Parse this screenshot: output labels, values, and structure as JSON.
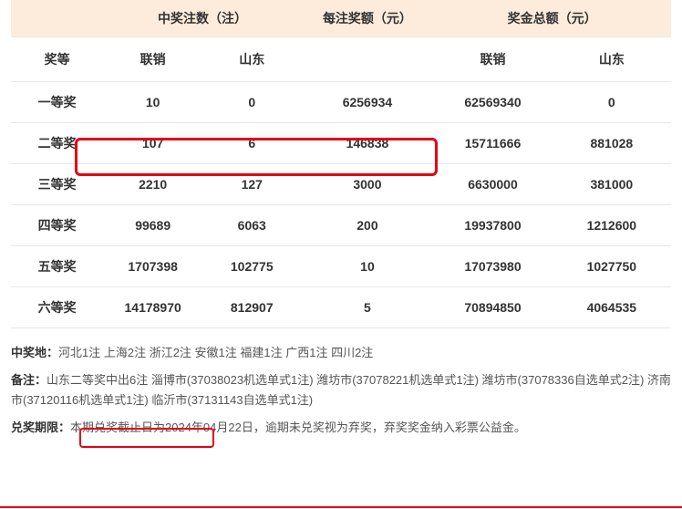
{
  "table": {
    "group_headers": {
      "blank": "",
      "count": "中奖注数（注）",
      "per_bet": "每注奖额（元）",
      "total": "奖金总额（元）"
    },
    "sub_headers": {
      "tier": "奖等",
      "count_lx": "联销",
      "count_sd": "山东",
      "per_bet": "",
      "total_lx": "联销",
      "total_sd": "山东"
    },
    "rows": [
      {
        "tier": "一等奖",
        "count_lx": "10",
        "count_sd": "0",
        "per_bet": "6256934",
        "total_lx": "62569340",
        "total_sd": "0"
      },
      {
        "tier": "二等奖",
        "count_lx": "107",
        "count_sd": "6",
        "per_bet": "146838",
        "total_lx": "15711666",
        "total_sd": "881028"
      },
      {
        "tier": "三等奖",
        "count_lx": "2210",
        "count_sd": "127",
        "per_bet": "3000",
        "total_lx": "6630000",
        "total_sd": "381000"
      },
      {
        "tier": "四等奖",
        "count_lx": "99689",
        "count_sd": "6063",
        "per_bet": "200",
        "total_lx": "19937800",
        "total_sd": "1212600"
      },
      {
        "tier": "五等奖",
        "count_lx": "1707398",
        "count_sd": "102775",
        "per_bet": "10",
        "total_lx": "17073980",
        "total_sd": "1027750"
      },
      {
        "tier": "六等奖",
        "count_lx": "14178970",
        "count_sd": "812907",
        "per_bet": "5",
        "total_lx": "70894850",
        "total_sd": "4064535"
      }
    ]
  },
  "notes": {
    "location_label": "中奖地：",
    "location_text": "河北1注 上海2注 浙江2注 安徽1注 福建1注 广西1注 四川2注",
    "remark_label": "备注：",
    "remark_highlight": "山东二等奖中出6注",
    "remark_rest": "淄博市(37038023机选单式1注) 潍坊市(37078221机选单式1注) 潍坊市(37078336自选单式2注) 济南市(37120116机选单式1注) 临沂市(37131143自选单式1注)",
    "deadline_label": "兑奖期限：",
    "deadline_text": "本期兑奖截止日为2024年04月22日，逾期未兑奖视为弃奖，弃奖奖金纳入彩票公益金。"
  },
  "colors": {
    "header_bg": "#fdecdb",
    "border": "#e8e8e8",
    "highlight": "#e60012",
    "text": "#333333",
    "note_text": "#555555"
  }
}
